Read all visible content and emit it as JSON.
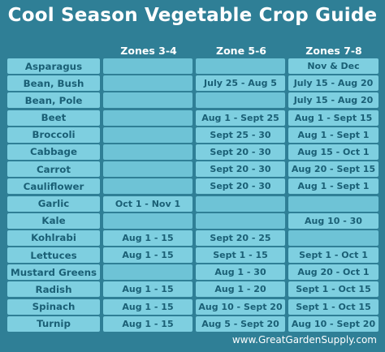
{
  "title": "Cool Season Vegetable Crop Guide",
  "headers": [
    "Zones 3-4",
    "Zone 5-6",
    "Zones 7-8"
  ],
  "rows": [
    {
      "name": "Asparagus",
      "z34": "",
      "z56": "",
      "z78": "Nov & Dec"
    },
    {
      "name": "Bean, Bush",
      "z34": "",
      "z56": "July 25 - Aug 5",
      "z78": "July 15 - Aug 20"
    },
    {
      "name": "Bean, Pole",
      "z34": "",
      "z56": "",
      "z78": "July 15 - Aug 20"
    },
    {
      "name": "Beet",
      "z34": "",
      "z56": "Aug 1 - Sept 25",
      "z78": "Aug 1 - Sept 15"
    },
    {
      "name": "Broccoli",
      "z34": "",
      "z56": "Sept 25 - 30",
      "z78": "Aug 1 - Sept 1"
    },
    {
      "name": "Cabbage",
      "z34": "",
      "z56": "Sept 20 - 30",
      "z78": "Aug 15 - Oct 1"
    },
    {
      "name": "Carrot",
      "z34": "",
      "z56": "Sept 20 - 30",
      "z78": "Aug 20 - Sept 15"
    },
    {
      "name": "Cauliflower",
      "z34": "",
      "z56": "Sept 20 - 30",
      "z78": "Aug 1 - Sept 1"
    },
    {
      "name": "Garlic",
      "z34": "Oct 1 - Nov 1",
      "z56": "",
      "z78": ""
    },
    {
      "name": "Kale",
      "z34": "",
      "z56": "",
      "z78": "Aug 10 - 30"
    },
    {
      "name": "Kohlrabi",
      "z34": "Aug 1 - 15",
      "z56": "Sept 20 - 25",
      "z78": ""
    },
    {
      "name": "Lettuces",
      "z34": "Aug 1 - 15",
      "z56": "Sept 1 - 15",
      "z78": "Sept 1 - Oct 1"
    },
    {
      "name": "Mustard Greens",
      "z34": "",
      "z56": "Aug 1 - 30",
      "z78": "Aug 20 - Oct 1"
    },
    {
      "name": "Radish",
      "z34": "Aug 1 - 15",
      "z56": "Aug 1 - 20",
      "z78": "Sept 1 - Oct 15"
    },
    {
      "name": "Spinach",
      "z34": "Aug 1 - 15",
      "z56": "Aug 10 - Sept 20",
      "z78": "Sept 1 - Oct 15"
    },
    {
      "name": "Turnip",
      "z34": "Aug 1 - 15",
      "z56": "Aug 5 - Sept 20",
      "z78": "Aug 10 - Sept 20"
    }
  ],
  "footer": "www.GreatGardenSupply.com"
}
